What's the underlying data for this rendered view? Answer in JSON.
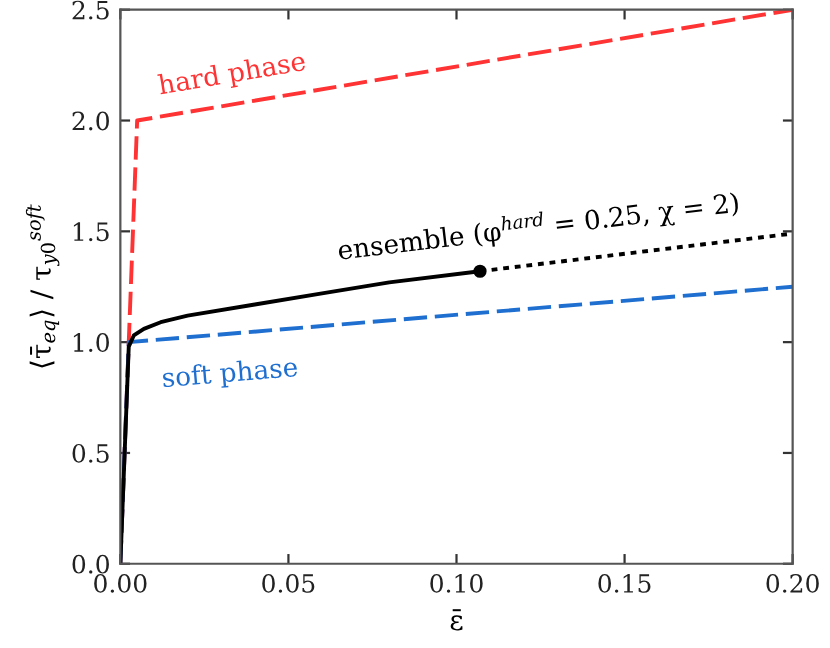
{
  "chart_data": {
    "type": "line",
    "xlabel": "ε̄",
    "ylabel": "⟨τ̄$_{eq}$⟩ / τ$_{y0}$$^{soft}$",
    "xlim": [
      0,
      0.2
    ],
    "ylim": [
      0,
      2.5
    ],
    "xticks": [
      {
        "value": 0,
        "label": "0.00"
      },
      0.05,
      {
        "value": 0.1,
        "label": "0.10"
      },
      0.15,
      {
        "value": 0.2,
        "label": "0.20"
      }
    ],
    "yticks": [
      {
        "value": 0,
        "label": "0.0"
      },
      0.5,
      {
        "value": 1,
        "label": "1.0"
      },
      1.5,
      {
        "value": 2,
        "label": "2.0"
      },
      2.5
    ],
    "grid": false,
    "legend": false,
    "series": [
      {
        "name": "hard phase",
        "color": "#ff3333",
        "line_style": "dashed",
        "marker": "none",
        "x": [
          0,
          0.005,
          0.2
        ],
        "values": [
          0,
          2.0,
          2.5
        ]
      },
      {
        "name": "soft phase",
        "color": "#1f6fd0",
        "line_style": "dashed",
        "marker": "none",
        "x": [
          0,
          0.0025,
          0.2
        ],
        "values": [
          0,
          1.0,
          1.25
        ]
      },
      {
        "name": "ensemble (φ$^{hard}$ = 0.25, χ = 2)",
        "color": "#000000",
        "line_style": "solid",
        "marker": "none",
        "x": [
          0,
          0.0025,
          0.004,
          0.007,
          0.012,
          0.02,
          0.04,
          0.06,
          0.08,
          0.107
        ],
        "values": [
          0,
          0.98,
          1.03,
          1.06,
          1.09,
          1.12,
          1.17,
          1.22,
          1.27,
          1.32
        ]
      },
      {
        "color": "#000000",
        "line_style": "dotted",
        "marker": "none",
        "x": [
          0.107,
          0.2
        ],
        "values": [
          1.32,
          1.49
        ]
      },
      {
        "type": "scatter",
        "color": "#000000",
        "marker": "circle",
        "x": [
          0.107
        ],
        "values": [
          1.32
        ]
      }
    ]
  }
}
